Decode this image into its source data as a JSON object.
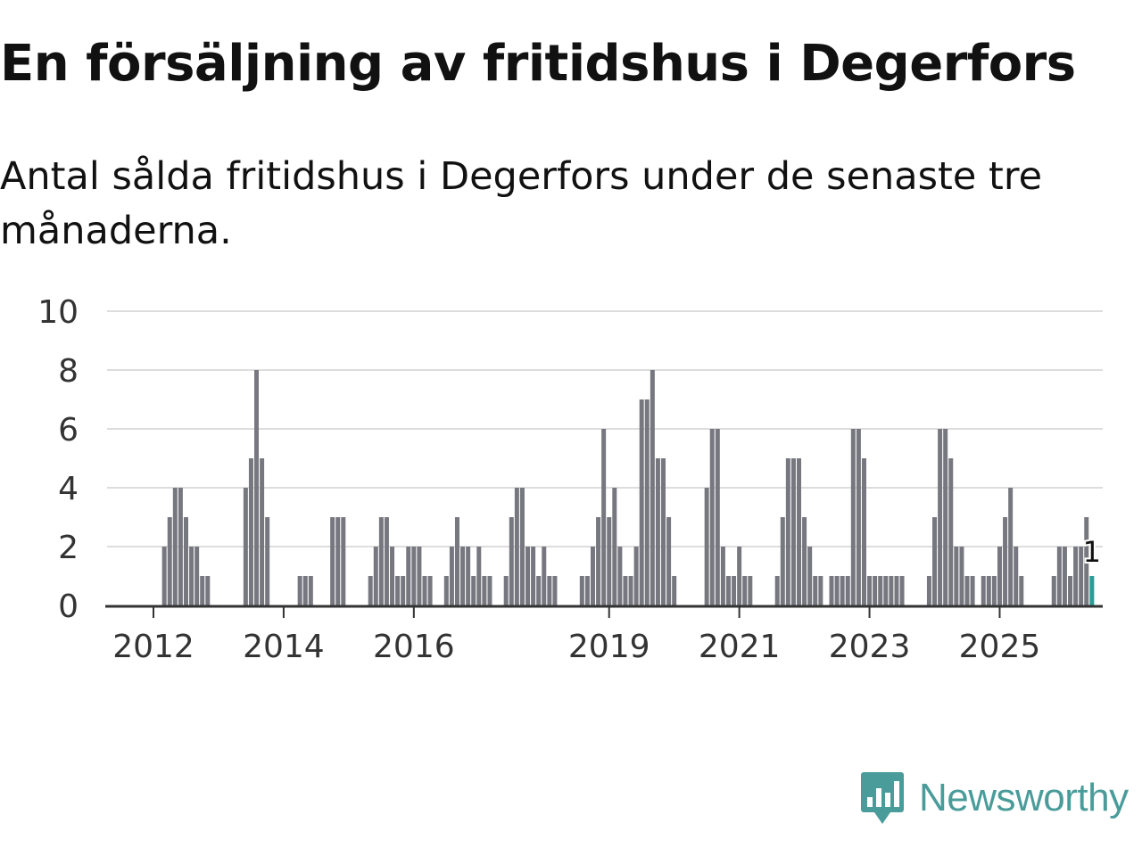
{
  "chart_data": {
    "type": "bar",
    "title": "En försäljning av fritidshus i Degerfors",
    "subtitle": "Antal sålda fritidshus i Degerfors under de senaste tre månaderna.",
    "xlabel": "",
    "ylabel": "",
    "ylim": [
      0,
      10
    ],
    "yticks": [
      "0",
      "2",
      "4",
      "6",
      "8",
      "10"
    ],
    "xticks": [
      {
        "label": "2012",
        "index": 9
      },
      {
        "label": "2014",
        "index": 33
      },
      {
        "label": "2016",
        "index": 57
      },
      {
        "label": "2019",
        "index": 93
      },
      {
        "label": "2021",
        "index": 117
      },
      {
        "label": "2023",
        "index": 141
      },
      {
        "label": "2025",
        "index": 165
      }
    ],
    "grid": true,
    "bar_color": "#777780",
    "highlight_color": "#2a9d96",
    "values": [
      0,
      0,
      0,
      0,
      0,
      0,
      0,
      0,
      0,
      0,
      0,
      2,
      3,
      4,
      4,
      3,
      2,
      2,
      1,
      1,
      0,
      0,
      0,
      0,
      0,
      0,
      4,
      5,
      8,
      5,
      3,
      0,
      0,
      0,
      0,
      0,
      1,
      1,
      1,
      0,
      0,
      0,
      3,
      3,
      3,
      0,
      0,
      0,
      0,
      1,
      2,
      3,
      3,
      2,
      1,
      1,
      2,
      2,
      2,
      1,
      1,
      0,
      0,
      1,
      2,
      3,
      2,
      2,
      1,
      2,
      1,
      1,
      0,
      0,
      1,
      3,
      4,
      4,
      2,
      2,
      1,
      2,
      1,
      1,
      0,
      0,
      0,
      0,
      1,
      1,
      2,
      3,
      6,
      3,
      4,
      2,
      1,
      1,
      2,
      7,
      7,
      8,
      5,
      5,
      3,
      1,
      0,
      0,
      0,
      0,
      0,
      4,
      6,
      6,
      2,
      1,
      1,
      2,
      1,
      1,
      0,
      0,
      0,
      0,
      1,
      3,
      5,
      5,
      5,
      3,
      2,
      1,
      1,
      0,
      1,
      1,
      1,
      1,
      6,
      6,
      5,
      1,
      1,
      1,
      1,
      1,
      1,
      1,
      0,
      0,
      0,
      0,
      1,
      3,
      6,
      6,
      5,
      2,
      2,
      1,
      1,
      0,
      1,
      1,
      1,
      2,
      3,
      4,
      2,
      1,
      0,
      0,
      0,
      0,
      0,
      1,
      2,
      2,
      1,
      2,
      2,
      3,
      1
    ],
    "last_label": "1"
  },
  "logo": {
    "text": "Newsworthy",
    "icon": "newsworthy-chart-bubble-icon",
    "color": "#4a9c9a"
  }
}
